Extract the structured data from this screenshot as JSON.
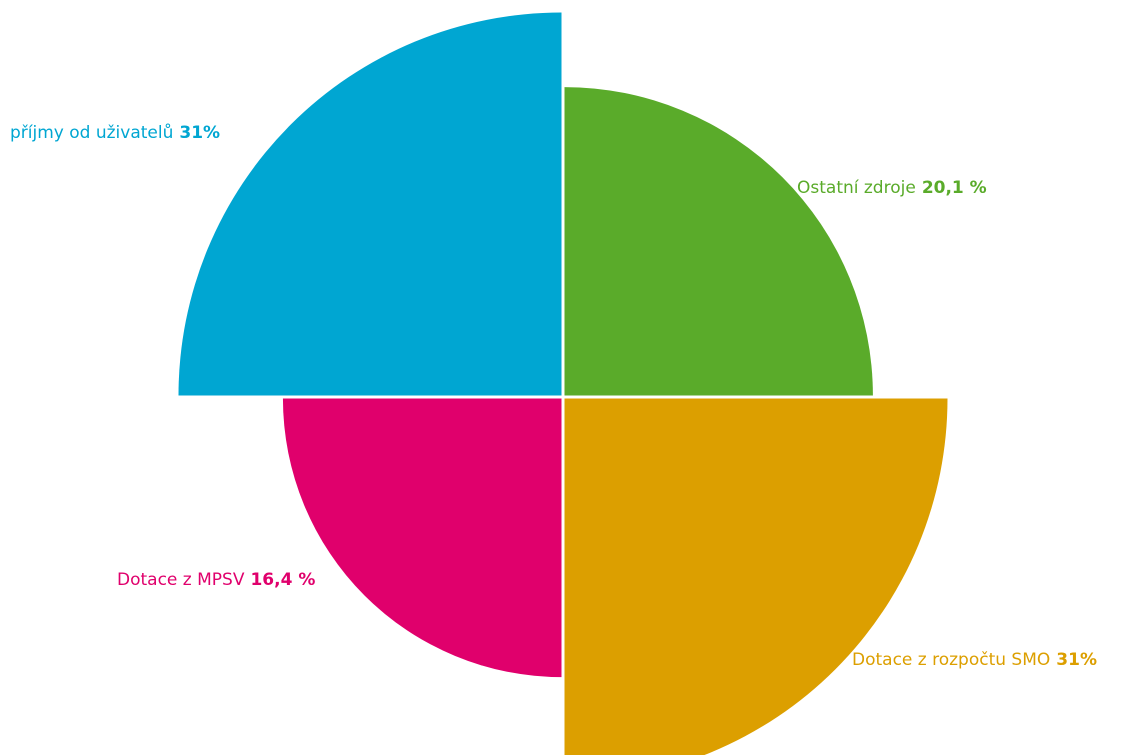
{
  "chart_data": {
    "type": "polar-area",
    "categories": [
      "příjmy od uživatelů",
      "Ostatní zdroje",
      "Dotace z rozpočtu SMO",
      "Dotace z MPSV"
    ],
    "values": [
      31,
      20.1,
      31,
      16.4
    ],
    "value_labels": [
      "31%",
      "20,1 %",
      "31%",
      "16,4 %"
    ],
    "colors": [
      "#00a6d2",
      "#5aab2a",
      "#dc9f00",
      "#e0006c"
    ]
  }
}
